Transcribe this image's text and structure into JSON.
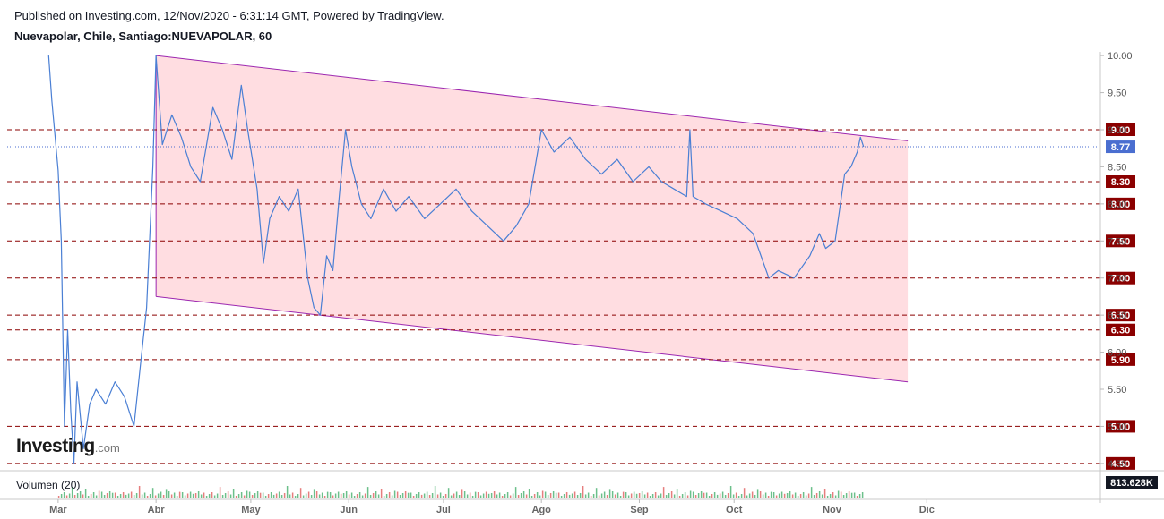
{
  "header": {
    "published": "Published on Investing.com, 12/Nov/2020 - 6:31:14 GMT, Powered by TradingView.",
    "symbol": "Nuevapolar, Chile, Santiago:NUEVAPOLAR, 60"
  },
  "logo": {
    "brand": "Investing",
    "domain": ".com"
  },
  "volume": {
    "label": "Volumen (20)",
    "value_tag": "813.628K"
  },
  "chart_data": {
    "type": "line",
    "title": "Nuevapolar, Chile, Santiago:NUEVAPOLAR, 60",
    "x_months": [
      "Mar",
      "Abr",
      "May",
      "Jun",
      "Jul",
      "Ago",
      "Sep",
      "Oct",
      "Nov",
      "Dic"
    ],
    "y_ticks": [
      10.0,
      9.5,
      9.0,
      8.5,
      8.0,
      7.5,
      7.0,
      6.5,
      6.0,
      5.5,
      5.0,
      4.5
    ],
    "y_tick_labels": [
      "10.00",
      "9.50",
      "9.00",
      "8.50",
      "8.00",
      "7.50",
      "7.00",
      "6.50",
      "6.00",
      "5.50",
      "5.00",
      "4.50"
    ],
    "ylim": [
      4.45,
      10.05
    ],
    "series": [
      {
        "color": "#4a7fd4",
        "points": [
          [
            "2020-02-27",
            10.0
          ],
          [
            "2020-02-28",
            9.4
          ],
          [
            "2020-03-01",
            8.45
          ],
          [
            "2020-03-02",
            7.5
          ],
          [
            "2020-03-03",
            5.0
          ],
          [
            "2020-03-04",
            6.3
          ],
          [
            "2020-03-05",
            5.2
          ],
          [
            "2020-03-06",
            4.5
          ],
          [
            "2020-03-07",
            5.6
          ],
          [
            "2020-03-09",
            4.7
          ],
          [
            "2020-03-11",
            5.3
          ],
          [
            "2020-03-13",
            5.5
          ],
          [
            "2020-03-16",
            5.3
          ],
          [
            "2020-03-19",
            5.6
          ],
          [
            "2020-03-22",
            5.4
          ],
          [
            "2020-03-25",
            5.0
          ],
          [
            "2020-03-27",
            5.8
          ],
          [
            "2020-03-29",
            6.6
          ],
          [
            "2020-03-31",
            8.5
          ],
          [
            "2020-04-01",
            10.0
          ],
          [
            "2020-04-03",
            8.8
          ],
          [
            "2020-04-06",
            9.2
          ],
          [
            "2020-04-09",
            8.9
          ],
          [
            "2020-04-12",
            8.5
          ],
          [
            "2020-04-15",
            8.3
          ],
          [
            "2020-04-19",
            9.3
          ],
          [
            "2020-04-22",
            9.0
          ],
          [
            "2020-04-25",
            8.6
          ],
          [
            "2020-04-28",
            9.6
          ],
          [
            "2020-04-30",
            9.0
          ],
          [
            "2020-05-03",
            8.2
          ],
          [
            "2020-05-05",
            7.2
          ],
          [
            "2020-05-07",
            7.8
          ],
          [
            "2020-05-10",
            8.1
          ],
          [
            "2020-05-13",
            7.9
          ],
          [
            "2020-05-16",
            8.2
          ],
          [
            "2020-05-19",
            7.0
          ],
          [
            "2020-05-21",
            6.6
          ],
          [
            "2020-05-23",
            6.5
          ],
          [
            "2020-05-25",
            7.3
          ],
          [
            "2020-05-27",
            7.1
          ],
          [
            "2020-05-29",
            8.1
          ],
          [
            "2020-05-31",
            9.0
          ],
          [
            "2020-06-02",
            8.5
          ],
          [
            "2020-06-05",
            8.0
          ],
          [
            "2020-06-08",
            7.8
          ],
          [
            "2020-06-12",
            8.2
          ],
          [
            "2020-06-16",
            7.9
          ],
          [
            "2020-06-20",
            8.1
          ],
          [
            "2020-06-25",
            7.8
          ],
          [
            "2020-06-30",
            8.0
          ],
          [
            "2020-07-05",
            8.2
          ],
          [
            "2020-07-10",
            7.9
          ],
          [
            "2020-07-15",
            7.7
          ],
          [
            "2020-07-20",
            7.5
          ],
          [
            "2020-07-24",
            7.7
          ],
          [
            "2020-07-28",
            8.0
          ],
          [
            "2020-08-01",
            9.0
          ],
          [
            "2020-08-05",
            8.7
          ],
          [
            "2020-08-10",
            8.9
          ],
          [
            "2020-08-15",
            8.6
          ],
          [
            "2020-08-20",
            8.4
          ],
          [
            "2020-08-25",
            8.6
          ],
          [
            "2020-08-30",
            8.3
          ],
          [
            "2020-09-04",
            8.5
          ],
          [
            "2020-09-08",
            8.3
          ],
          [
            "2020-09-12",
            8.2
          ],
          [
            "2020-09-16",
            8.1
          ],
          [
            "2020-09-17",
            9.0
          ],
          [
            "2020-09-18",
            8.1
          ],
          [
            "2020-09-22",
            8.0
          ],
          [
            "2020-09-27",
            7.9
          ],
          [
            "2020-10-02",
            7.8
          ],
          [
            "2020-10-07",
            7.6
          ],
          [
            "2020-10-12",
            7.0
          ],
          [
            "2020-10-15",
            7.1
          ],
          [
            "2020-10-20",
            7.0
          ],
          [
            "2020-10-25",
            7.3
          ],
          [
            "2020-10-28",
            7.6
          ],
          [
            "2020-10-30",
            7.4
          ],
          [
            "2020-11-02",
            7.5
          ],
          [
            "2020-11-05",
            8.4
          ],
          [
            "2020-11-07",
            8.5
          ],
          [
            "2020-11-09",
            8.7
          ],
          [
            "2020-11-10",
            8.9
          ],
          [
            "2020-11-11",
            8.77
          ]
        ]
      }
    ],
    "channel": {
      "color": "#9c27b0",
      "fill": "#ffdde1",
      "upper": [
        [
          "2020-04-01",
          10.0
        ],
        [
          "2020-11-25",
          8.85
        ]
      ],
      "lower": [
        [
          "2020-04-01",
          6.75
        ],
        [
          "2020-11-25",
          5.6
        ]
      ]
    },
    "horizontal_levels": [
      {
        "value": 9.0,
        "label": "9.00"
      },
      {
        "value": 8.3,
        "label": "8.30"
      },
      {
        "value": 8.0,
        "label": "8.00"
      },
      {
        "value": 7.5,
        "label": "7.50"
      },
      {
        "value": 7.0,
        "label": "7.00"
      },
      {
        "value": 6.5,
        "label": "6.50"
      },
      {
        "value": 6.3,
        "label": "6.30"
      },
      {
        "value": 5.9,
        "label": "5.90"
      },
      {
        "value": 5.0,
        "label": "5.00"
      },
      {
        "value": 4.5,
        "label": "4.50"
      }
    ],
    "level_color": "#8b0000",
    "last_price": {
      "value": 8.77,
      "label": "8.77",
      "color": "#4a6ed0"
    },
    "grid": false,
    "legend": "none"
  }
}
